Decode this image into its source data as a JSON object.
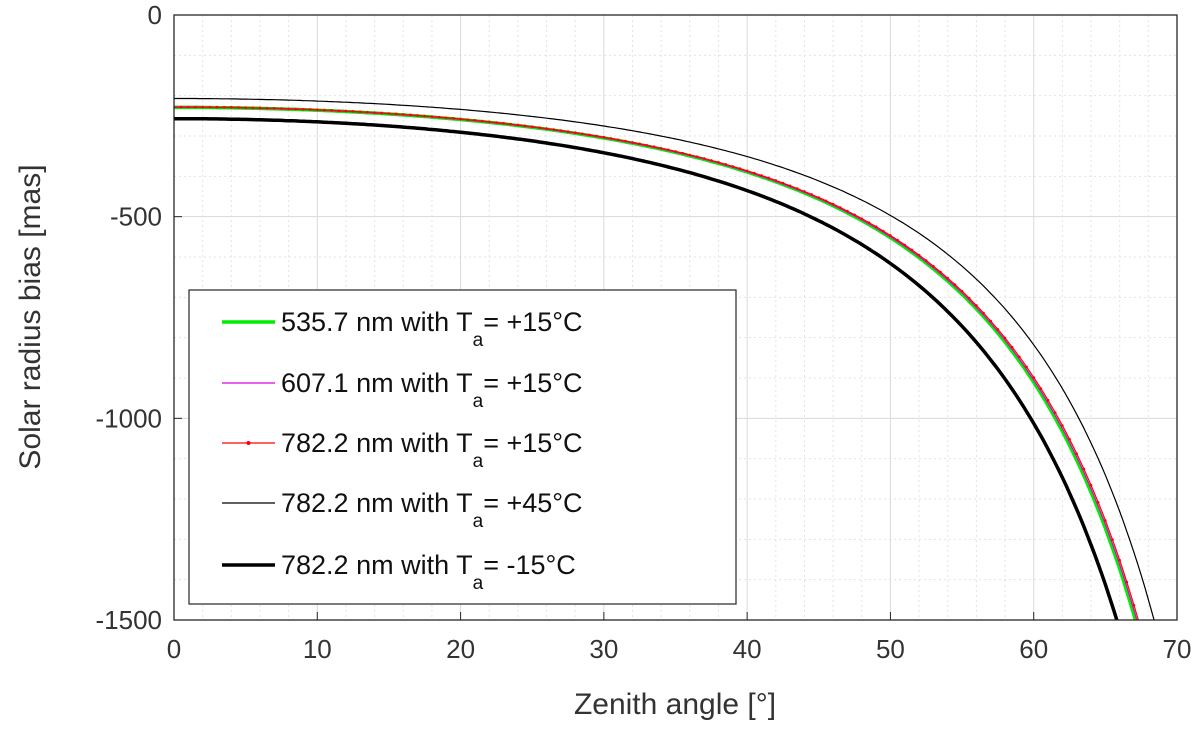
{
  "chart_data": {
    "type": "line",
    "xlabel": "Zenith angle [°]",
    "ylabel": "Solar radius bias [mas]",
    "xlim": [
      0,
      70
    ],
    "ylim": [
      -1500,
      0
    ],
    "xticks": [
      "0",
      "10",
      "20",
      "30",
      "40",
      "50",
      "60",
      "70"
    ],
    "yticks": [
      "0",
      "-500",
      "-1000",
      "-1500"
    ],
    "grid": true,
    "minor_grid": true,
    "legend_position": "bottom-left",
    "series": [
      {
        "name": "535.7 nm with T",
        "sub": "a",
        "tail": "= +15°C",
        "color": "#00ee00",
        "width": 3.5,
        "marker": "none",
        "base": -229,
        "x_at_-1500": 67.1
      },
      {
        "name": "607.1 nm with T",
        "sub": "a",
        "tail": "= +15°C",
        "color": "#dd00dd",
        "width": 1.2,
        "marker": "none",
        "base": -229,
        "x_at_-1500": 67.2
      },
      {
        "name": "782.2 nm with T",
        "sub": "a",
        "tail": "= +15°C",
        "color": "#ff0000",
        "width": 1.2,
        "marker": "dot",
        "base": -228,
        "x_at_-1500": 67.3
      },
      {
        "name": "782.2 nm with T",
        "sub": "a",
        "tail": "= +45°C",
        "color": "#000000",
        "width": 1.2,
        "marker": "none",
        "base": -207,
        "x_at_-1500": 68.4
      },
      {
        "name": "782.2 nm with T",
        "sub": "a",
        "tail": "= -15°C",
        "color": "#000000",
        "width": 3.5,
        "marker": "none",
        "base": -257,
        "x_at_-1500": 65.8
      }
    ]
  }
}
